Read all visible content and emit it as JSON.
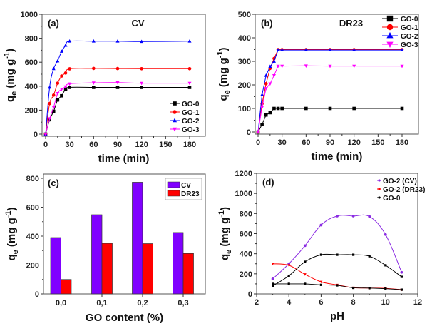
{
  "chart_data": [
    {
      "id": "a",
      "type": "line",
      "panel_label": "(a)",
      "title": "CV",
      "xlabel": "time (min)",
      "ylabel": "qe (mg g-1)",
      "ylabel_parts": {
        "main": "q",
        "sub": "e",
        "unit": " (mg g",
        "sup": "-1",
        "close": ")"
      },
      "xlim": [
        0,
        200
      ],
      "ylim": [
        0,
        1000
      ],
      "xticks": [
        0,
        30,
        60,
        90,
        120,
        150,
        180
      ],
      "yticks": [
        0,
        200,
        400,
        600,
        800,
        1000
      ],
      "legend_position": "bottom-right",
      "x": [
        0,
        5,
        10,
        15,
        20,
        25,
        30,
        60,
        90,
        120,
        180
      ],
      "series": [
        {
          "name": "GO-0",
          "color": "#000000",
          "marker": "square",
          "values": [
            0,
            120,
            190,
            285,
            320,
            375,
            390,
            390,
            390,
            390,
            390
          ]
        },
        {
          "name": "GO-1",
          "color": "#ff0000",
          "marker": "circle",
          "values": [
            0,
            255,
            325,
            425,
            485,
            510,
            545,
            548,
            547,
            546,
            546
          ]
        },
        {
          "name": "GO-2",
          "color": "#0000ff",
          "marker": "triangle-up",
          "values": [
            0,
            390,
            545,
            610,
            690,
            740,
            775,
            775,
            775,
            772,
            775
          ]
        },
        {
          "name": "GO-3",
          "color": "#ff00ff",
          "marker": "triangle-down",
          "values": [
            0,
            130,
            225,
            340,
            375,
            395,
            420,
            428,
            430,
            425,
            425
          ]
        }
      ]
    },
    {
      "id": "b",
      "type": "line",
      "panel_label": "(b)",
      "title": "DR23",
      "xlabel": "time (min)",
      "ylabel": "qe (mg g-1)",
      "ylabel_parts": {
        "main": "q",
        "sub": "e",
        "unit": " (mg g",
        "sup": "-1",
        "close": ")"
      },
      "xlim": [
        0,
        200
      ],
      "ylim": [
        0,
        500
      ],
      "xticks": [
        0,
        30,
        60,
        90,
        120,
        150,
        180
      ],
      "yticks": [
        0,
        100,
        200,
        300,
        400,
        500
      ],
      "legend_position": "top-right",
      "x": [
        0,
        5,
        10,
        15,
        20,
        25,
        30,
        60,
        90,
        120,
        180
      ],
      "series": [
        {
          "name": "GO-0",
          "color": "#000000",
          "marker": "square",
          "values": [
            0,
            32,
            72,
            82,
            100,
            100,
            100,
            100,
            100,
            100,
            100
          ]
        },
        {
          "name": "GO-1",
          "color": "#ff0000",
          "marker": "circle",
          "values": [
            0,
            120,
            205,
            270,
            312,
            350,
            350,
            350,
            350,
            350,
            350
          ]
        },
        {
          "name": "GO-2",
          "color": "#0000ff",
          "marker": "triangle-up",
          "values": [
            0,
            158,
            240,
            278,
            300,
            348,
            348,
            348,
            348,
            348,
            348
          ]
        },
        {
          "name": "GO-3",
          "color": "#ff00ff",
          "marker": "triangle-down",
          "values": [
            0,
            105,
            185,
            205,
            240,
            280,
            280,
            281,
            280,
            280,
            280
          ]
        }
      ]
    },
    {
      "id": "c",
      "type": "bar",
      "panel_label": "(c)",
      "title": "",
      "xlabel": "GO content (%)",
      "ylabel": "qe (mg g-1)",
      "ylabel_parts": {
        "main": "q",
        "sub": "e",
        "unit": " (mg g",
        "sup": "-1",
        "close": ")"
      },
      "ylim": [
        0,
        820
      ],
      "yticks": [
        0,
        200,
        400,
        600,
        800
      ],
      "categories": [
        "0,0",
        "0,1",
        "0,2",
        "0,3"
      ],
      "legend_position": "top-right",
      "series": [
        {
          "name": "CV",
          "color": "#8000ff",
          "values": [
            390,
            548,
            773,
            425
          ]
        },
        {
          "name": "DR23",
          "color": "#ff0000",
          "values": [
            100,
            350,
            348,
            280
          ]
        }
      ]
    },
    {
      "id": "d",
      "type": "line",
      "panel_label": "(d)",
      "title": "",
      "xlabel": "pH",
      "ylabel": "qe (mg g-1)",
      "ylabel_parts": {
        "main": "q",
        "sub": "e",
        "unit": " (mg g",
        "sup": "-1",
        "close": ")"
      },
      "xlim": [
        2,
        12
      ],
      "ylim": [
        0,
        1200
      ],
      "xticks": [
        2,
        4,
        6,
        8,
        10,
        12
      ],
      "yticks": [
        0,
        200,
        400,
        600,
        800,
        1000,
        1200
      ],
      "legend_position": "top-right",
      "x": [
        3,
        4,
        5,
        6,
        7,
        8,
        9,
        10,
        11
      ],
      "series": [
        {
          "name": "GO-2 (CV)",
          "color": "#8a2be2",
          "marker": "dot",
          "values": [
            150,
            300,
            480,
            685,
            775,
            775,
            770,
            590,
            215
          ]
        },
        {
          "name": "GO-2 (DR23)",
          "color": "#ff0000",
          "marker": "dot",
          "values": [
            300,
            285,
            195,
            120,
            90,
            62,
            58,
            55,
            42
          ]
        },
        {
          "name": "GO-0",
          "color": "#000000",
          "marker": "dot",
          "values": [
            80,
            180,
            320,
            390,
            390,
            390,
            375,
            285,
            170
          ]
        },
        {
          "name": "GO-0",
          "color": "#000000",
          "marker": "dot",
          "legend": false,
          "values": [
            100,
            100,
            100,
            90,
            85,
            60,
            58,
            52,
            42
          ]
        }
      ]
    }
  ]
}
